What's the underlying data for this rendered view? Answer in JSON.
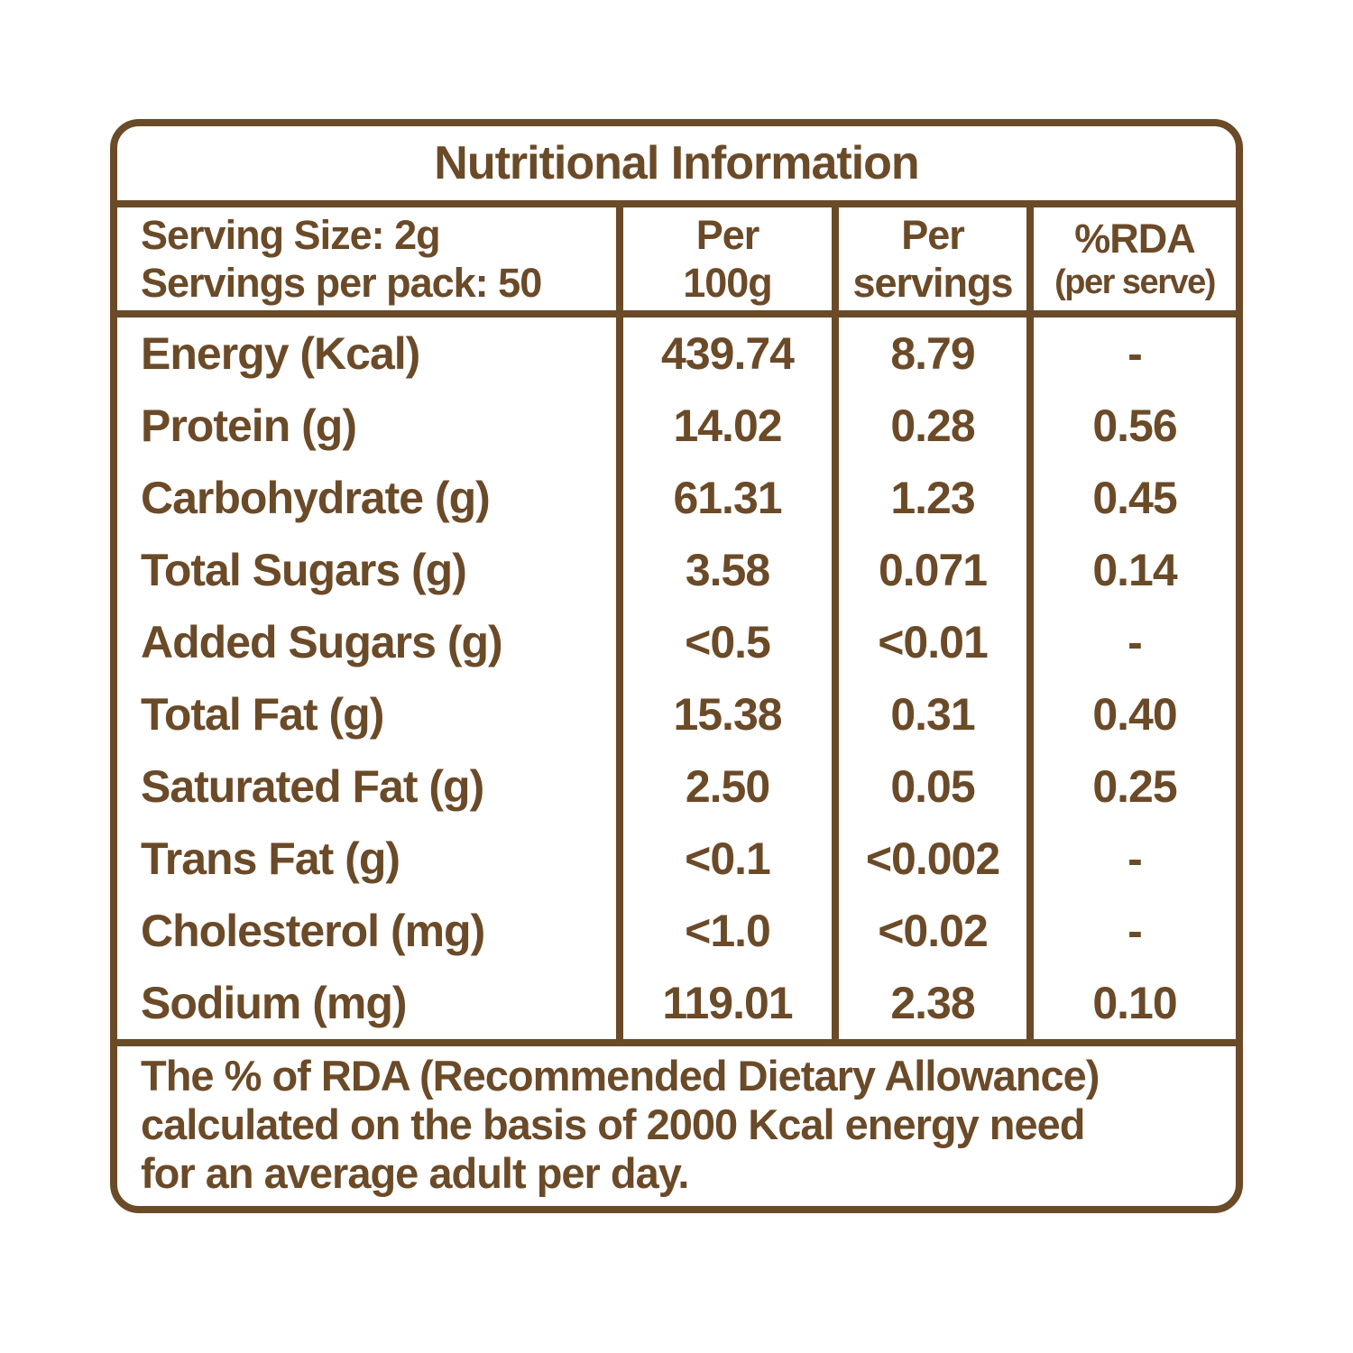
{
  "title": "Nutritional Information",
  "header": {
    "serving_size": "Serving Size: 2g",
    "servings_per_pack": "Servings per pack: 50",
    "col_per_100g": {
      "line1": "Per",
      "line2": "100g"
    },
    "col_per_servings": {
      "line1": "Per",
      "line2": "servings"
    },
    "col_rda": {
      "line1": "%RDA",
      "line2": "(per serve)"
    }
  },
  "rows": [
    {
      "nutrient": "Energy (Kcal)",
      "per_100g": "439.74",
      "per_serving": "8.79",
      "rda": "-"
    },
    {
      "nutrient": "Protein (g)",
      "per_100g": "14.02",
      "per_serving": "0.28",
      "rda": "0.56"
    },
    {
      "nutrient": "Carbohydrate (g)",
      "per_100g": "61.31",
      "per_serving": "1.23",
      "rda": "0.45"
    },
    {
      "nutrient": "Total Sugars (g)",
      "per_100g": "3.58",
      "per_serving": "0.071",
      "rda": "0.14"
    },
    {
      "nutrient": "Added Sugars (g)",
      "per_100g": "<0.5",
      "per_serving": "<0.01",
      "rda": "-"
    },
    {
      "nutrient": "Total Fat (g)",
      "per_100g": "15.38",
      "per_serving": "0.31",
      "rda": "0.40"
    },
    {
      "nutrient": "Saturated Fat (g)",
      "per_100g": "2.50",
      "per_serving": "0.05",
      "rda": "0.25"
    },
    {
      "nutrient": "Trans Fat (g)",
      "per_100g": "<0.1",
      "per_serving": "<0.002",
      "rda": "-"
    },
    {
      "nutrient": "Cholesterol (mg)",
      "per_100g": "<1.0",
      "per_serving": "<0.02",
      "rda": "-"
    },
    {
      "nutrient": "Sodium (mg)",
      "per_100g": "119.01",
      "per_serving": "2.38",
      "rda": "0.10"
    }
  ],
  "footnote": {
    "line1": "The % of RDA (Recommended Dietary Allowance)",
    "line2": "calculated on the basis of 2000 Kcal energy need",
    "line3": "for an average adult per day.",
    "full_text": "The % of RDA (Recommended Dietary Allowance) calculated on the basis of 2000 Kcal energy need for an average adult per day."
  },
  "colors": {
    "text": "#6b4a28",
    "border": "#6b4a28",
    "background": "#ffffff"
  }
}
